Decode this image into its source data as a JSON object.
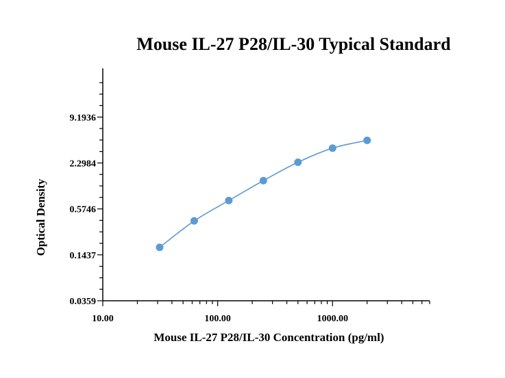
{
  "chart_data": {
    "type": "line",
    "title": "Mouse IL-27 P28/IL-30 Typical Standard",
    "xlabel": "Mouse IL-27 P28/IL-30 Concentration (pg/ml)",
    "ylabel": "Optical Density",
    "x_scale": "log",
    "y_scale": "log",
    "xlim": [
      10,
      7000
    ],
    "ylim": [
      0.0359,
      40
    ],
    "x_ticks": [
      10,
      100,
      1000
    ],
    "x_tick_labels": [
      "10.00",
      "100.00",
      "1000.00"
    ],
    "y_ticks": [
      0.0359,
      0.1437,
      0.5746,
      2.2984,
      9.1936
    ],
    "y_tick_labels": [
      "0.0359",
      "0.1437",
      "0.5746",
      "2.2984",
      "9.1936"
    ],
    "grid": false,
    "legend": "none",
    "series": [
      {
        "color": "#5b9bd5",
        "x": [
          31.25,
          62.5,
          125,
          250,
          500,
          1000,
          2000
        ],
        "y": [
          0.18,
          0.4,
          0.74,
          1.35,
          2.35,
          3.6,
          4.55
        ]
      }
    ]
  }
}
